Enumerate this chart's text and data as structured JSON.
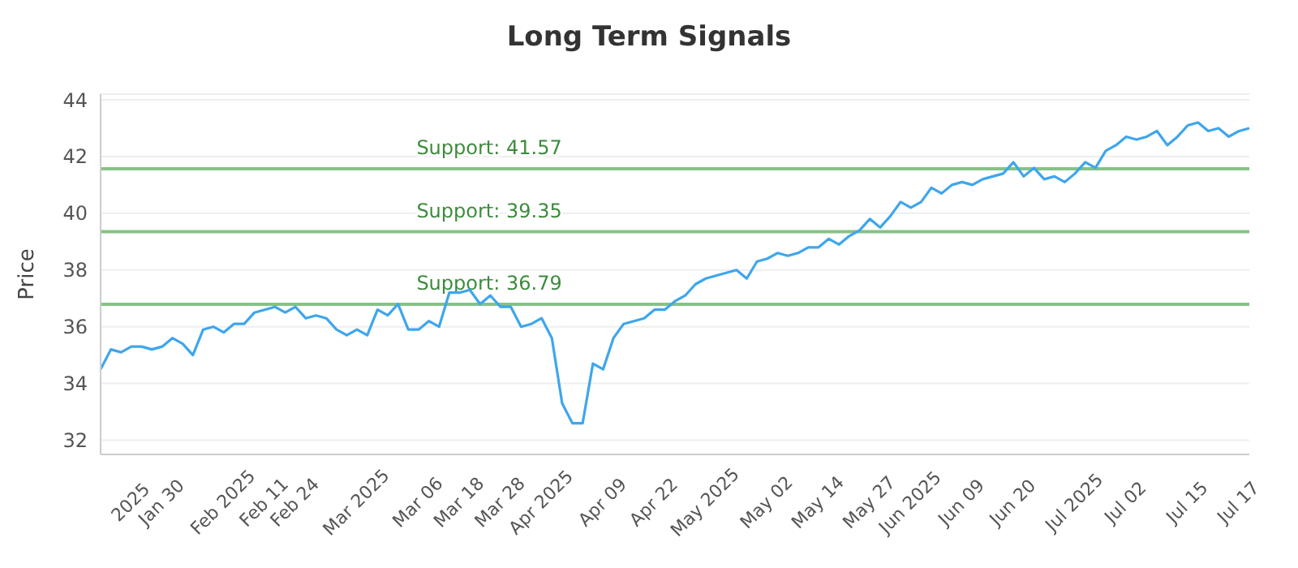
{
  "chart_data": {
    "type": "line",
    "title": "Long Term Signals",
    "ylabel": "Price",
    "categories": [
      null,
      null,
      null,
      "2025",
      null,
      null,
      "Jan 30",
      null,
      null,
      null,
      null,
      null,
      "Feb 2025",
      null,
      null,
      null,
      "Feb 11",
      null,
      null,
      "Feb 24",
      null,
      null,
      null,
      null,
      null,
      "Mar 2025",
      null,
      null,
      null,
      null,
      null,
      "Mar 06",
      null,
      null,
      null,
      "Mar 18",
      null,
      null,
      null,
      "Mar 28",
      null,
      null,
      null,
      "Apr 2025",
      null,
      null,
      null,
      null,
      null,
      "Apr 09",
      null,
      null,
      null,
      null,
      "Apr 22",
      null,
      null,
      null,
      null,
      "May 2025",
      null,
      null,
      null,
      null,
      null,
      "May 02",
      null,
      null,
      null,
      null,
      "May 14",
      null,
      null,
      null,
      null,
      "May 27",
      null,
      null,
      null,
      "Jun 2025",
      null,
      null,
      null,
      null,
      "Jun 09",
      null,
      null,
      null,
      null,
      "Jun 20",
      null,
      null,
      null,
      null,
      null,
      "Jul 2025",
      null,
      null,
      null,
      null,
      "Jul 02",
      null,
      null,
      null,
      null,
      null,
      "Jul 15",
      null,
      null,
      null,
      null,
      "Jul 17",
      null
    ],
    "series": [
      {
        "color": "#3ea6ec",
        "values": [
          34.5,
          35.2,
          35.1,
          35.3,
          35.3,
          35.2,
          35.3,
          35.6,
          35.4,
          35.0,
          35.9,
          36.0,
          35.8,
          36.1,
          36.1,
          36.5,
          36.6,
          36.7,
          36.5,
          36.7,
          36.3,
          36.4,
          36.3,
          35.9,
          35.7,
          35.9,
          35.7,
          36.6,
          36.4,
          36.8,
          35.9,
          35.9,
          36.2,
          36.0,
          37.2,
          37.2,
          37.3,
          36.8,
          37.1,
          36.7,
          36.7,
          36.0,
          36.1,
          36.3,
          35.6,
          33.3,
          32.6,
          32.6,
          34.7,
          34.5,
          35.6,
          36.1,
          36.2,
          36.3,
          36.6,
          36.6,
          36.9,
          37.1,
          37.5,
          37.7,
          37.8,
          37.9,
          38.0,
          37.7,
          38.3,
          38.4,
          38.6,
          38.5,
          38.6,
          38.8,
          38.8,
          39.1,
          38.9,
          39.2,
          39.4,
          39.8,
          39.5,
          39.9,
          40.4,
          40.2,
          40.4,
          40.9,
          40.7,
          41.0,
          41.1,
          41.0,
          41.2,
          41.3,
          41.4,
          41.8,
          41.3,
          41.6,
          41.2,
          41.3,
          41.1,
          41.4,
          41.8,
          41.6,
          42.2,
          42.4,
          42.7,
          42.6,
          42.7,
          42.9,
          42.4,
          42.7,
          43.1,
          43.2,
          42.9,
          43.0,
          42.7,
          42.9,
          43.0
        ]
      }
    ],
    "ylim": [
      31.5,
      44.2
    ],
    "yticks": [
      32,
      34,
      36,
      38,
      40,
      42,
      44
    ],
    "grid": "y",
    "marker": "none",
    "line_style": "solid",
    "ref_lines": [
      {
        "axis": "y",
        "value": 41.57,
        "label": "Support: 41.57",
        "color": "#86c286"
      },
      {
        "axis": "y",
        "value": 39.35,
        "label": "Support: 39.35",
        "color": "#86c286"
      },
      {
        "axis": "y",
        "value": 36.79,
        "label": "Support: 36.79",
        "color": "#86c286"
      }
    ]
  }
}
